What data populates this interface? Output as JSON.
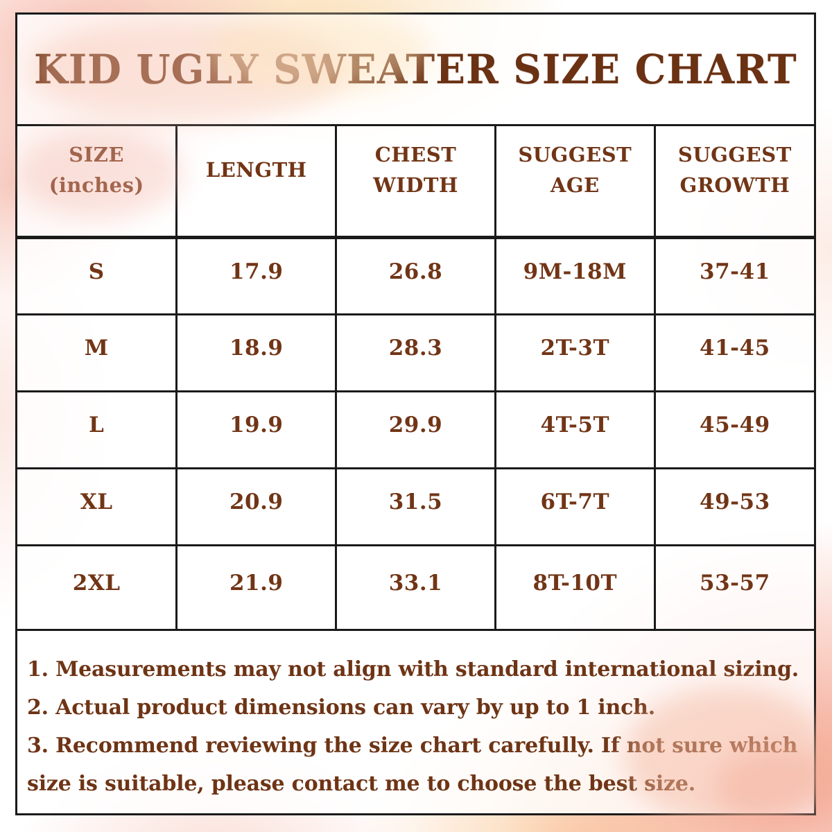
{
  "page": {
    "title": "KID UGLY SWEATER SIZE CHART"
  },
  "table": {
    "unit_note": "(inches)",
    "headers": [
      "SIZE\n(inches)",
      "LENGTH",
      "CHEST\nWIDTH",
      "SUGGEST\nAGE",
      "SUGGEST\nGROWTH"
    ],
    "rows": [
      {
        "size": "S",
        "length": "17.9",
        "chest_width": "26.8",
        "suggest_age": "9M-18M",
        "suggest_growth": "37-41"
      },
      {
        "size": "M",
        "length": "18.9",
        "chest_width": "28.3",
        "suggest_age": "2T-3T",
        "suggest_growth": "41-45"
      },
      {
        "size": "L",
        "length": "19.9",
        "chest_width": "29.9",
        "suggest_age": "4T-5T",
        "suggest_growth": "45-49"
      },
      {
        "size": "XL",
        "length": "20.9",
        "chest_width": "31.5",
        "suggest_age": "6T-7T",
        "suggest_growth": "49-53"
      },
      {
        "size": "2XL",
        "length": "21.9",
        "chest_width": "33.1",
        "suggest_age": "8T-10T",
        "suggest_growth": "53-57"
      }
    ]
  },
  "notes": [
    "1. Measurements may not align with standard international sizing.",
    "2. Actual product dimensions can vary by up to 1 inch.",
    "3. Recommend reviewing the size chart carefully. If not sure which size is suitable, please contact me to choose the best size."
  ],
  "colors": {
    "text_brown": "#6e3415",
    "title_brown": "#6b3113",
    "border_black": "#1a1a1a",
    "watercolor_pink": "#f4a08a",
    "watercolor_salmon": "#f3ac9b",
    "watercolor_peach": "#fadeb4",
    "watercolor_orange": "#fac694"
  }
}
